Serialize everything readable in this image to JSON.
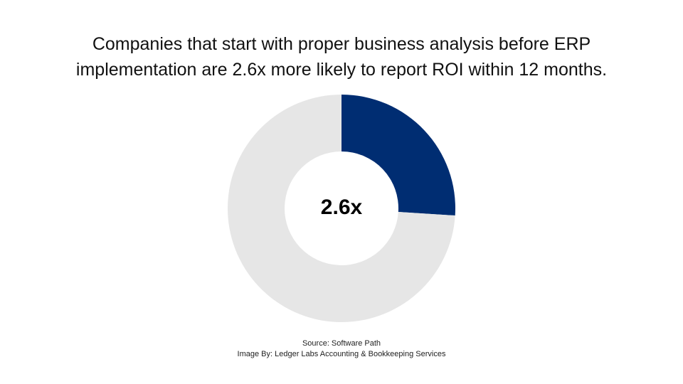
{
  "title": {
    "line1": "Companies that start with proper business analysis before ERP",
    "line2": "implementation are 2.6x more likely to report ROI within 12 months."
  },
  "chart_data": {
    "type": "pie",
    "variant": "donut",
    "center_label": "2.6x",
    "slices": [
      {
        "value": 0.26,
        "color": "#002D72"
      },
      {
        "value": 0.74,
        "color": "#E6E6E6"
      }
    ]
  },
  "footer": {
    "source": "Source: Software Path",
    "credit": "Image By: Ledger Labs Accounting & Bookkeeping Services"
  }
}
